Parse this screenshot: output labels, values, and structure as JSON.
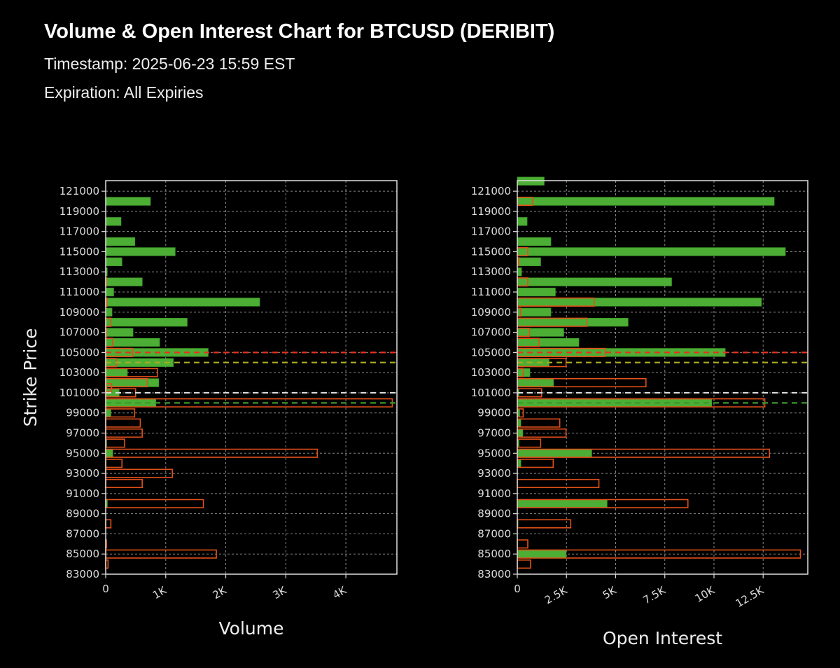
{
  "header": {
    "title": "Volume & Open Interest Chart for BTCUSD (DERIBIT)",
    "timestamp": "Timestamp: 2025-06-23 15:59 EST",
    "expiration": "Expiration: All Expiries"
  },
  "colors": {
    "calls_fill": "#4cae34",
    "puts_edge": "#e0501a",
    "background": "#000000",
    "grid": "#888888"
  },
  "chart_data": [
    {
      "type": "bar",
      "orientation": "horizontal",
      "ylabel": "Strike Price",
      "xlabel": "Volume",
      "ylim": [
        83000,
        122050
      ],
      "xlim": [
        0,
        4850
      ],
      "yticks": [
        83000,
        85000,
        87000,
        89000,
        91000,
        93000,
        95000,
        97000,
        99000,
        101000,
        103000,
        105000,
        107000,
        109000,
        111000,
        113000,
        115000,
        117000,
        119000,
        121000
      ],
      "xticks": [
        {
          "value": 0,
          "label": "0"
        },
        {
          "value": 1000,
          "label": "1K"
        },
        {
          "value": 2000,
          "label": "2K"
        },
        {
          "value": 3000,
          "label": "3K"
        },
        {
          "value": 4000,
          "label": "4K"
        }
      ],
      "grid": true,
      "strikes": [
        122000,
        120000,
        118000,
        117000,
        116000,
        115000,
        114000,
        113000,
        112000,
        111000,
        110000,
        109000,
        108000,
        107000,
        106000,
        105000,
        104000,
        103000,
        102000,
        101500,
        101000,
        100000,
        99000,
        98000,
        97000,
        96000,
        95000,
        94000,
        93000,
        92000,
        90000,
        88000,
        86000,
        85000,
        84000
      ],
      "series": [
        {
          "style": "filled-green",
          "values": [
            0,
            745,
            255,
            0,
            486,
            1157,
            270,
            25,
            608,
            133,
            2565,
            105,
            1357,
            455,
            898,
            1706,
            1126,
            361,
            882,
            20,
            224,
            835,
            86,
            0,
            0,
            15,
            118,
            0,
            0,
            0,
            27,
            0,
            0,
            0,
            0
          ]
        },
        {
          "style": "outlined-orange",
          "values": [
            0,
            0,
            0,
            0,
            0,
            0,
            0,
            0,
            10,
            0,
            20,
            0,
            86,
            5,
            114,
            451,
            176,
            863,
            694,
            98,
            498,
            4773,
            482,
            576,
            608,
            314,
            3525,
            271,
            1110,
            608,
            1627,
            86,
            12,
            1843,
            39
          ]
        }
      ],
      "reference_lines": [
        {
          "strike": 105000,
          "color": "#e8321e"
        },
        {
          "strike": 104000,
          "color": "#aaaa22"
        },
        {
          "strike": 101000,
          "color": "#dddddd"
        },
        {
          "strike": 100000,
          "color": "#3a9a2a"
        }
      ]
    },
    {
      "type": "bar",
      "orientation": "horizontal",
      "ylabel": "",
      "xlabel": "Open Interest",
      "ylim": [
        83000,
        122050
      ],
      "xlim": [
        0,
        14770
      ],
      "yticks": [
        83000,
        85000,
        87000,
        89000,
        91000,
        93000,
        95000,
        97000,
        99000,
        101000,
        103000,
        105000,
        107000,
        109000,
        111000,
        113000,
        115000,
        117000,
        119000,
        121000
      ],
      "xticks": [
        {
          "value": 0,
          "label": "0"
        },
        {
          "value": 2500,
          "label": "2.5K"
        },
        {
          "value": 5000,
          "label": "5K"
        },
        {
          "value": 7500,
          "label": "7.5K"
        },
        {
          "value": 10000,
          "label": "10K"
        },
        {
          "value": 12500,
          "label": "12.5K"
        }
      ],
      "grid": true,
      "strikes": [
        122000,
        120000,
        118000,
        117000,
        116000,
        115000,
        114000,
        113000,
        112000,
        111000,
        110000,
        109000,
        108000,
        107000,
        106000,
        105000,
        104000,
        103000,
        102000,
        101500,
        101000,
        100000,
        99000,
        98000,
        97000,
        96000,
        95000,
        94000,
        93000,
        92000,
        90000,
        88000,
        86000,
        85000,
        84000
      ],
      "series": [
        {
          "style": "filled-green",
          "values": [
            1365,
            13060,
            498,
            0,
            1706,
            13630,
            1187,
            213,
            7845,
            1934,
            12410,
            1706,
            5631,
            2360,
            3128,
            10572,
            1614,
            640,
            1838,
            0,
            85,
            9883,
            121,
            178,
            274,
            85,
            3783,
            178,
            0,
            0,
            4565,
            20,
            0,
            2478,
            0
          ]
        },
        {
          "style": "outlined-orange",
          "values": [
            0,
            771,
            0,
            0,
            0,
            533,
            60,
            0,
            533,
            0,
            3910,
            167,
            3544,
            619,
            1103,
            4469,
            2478,
            299,
            6541,
            0,
            1234,
            12585,
            299,
            2158,
            2478,
            1187,
            12822,
            1827,
            0,
            4148,
            8674,
            2716,
            533,
            14396,
            675
          ]
        }
      ],
      "reference_lines": [
        {
          "strike": 105000,
          "color": "#e8321e"
        },
        {
          "strike": 104000,
          "color": "#aaaa22"
        },
        {
          "strike": 101000,
          "color": "#dddddd"
        },
        {
          "strike": 100000,
          "color": "#3a9a2a"
        }
      ]
    }
  ]
}
